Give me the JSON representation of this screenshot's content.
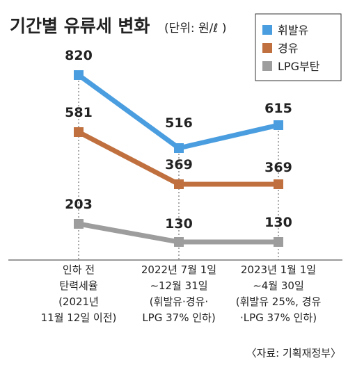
{
  "chart_data": {
    "type": "line",
    "title": "기간별 유류세 변화",
    "unit": "(단위: 원/ℓ )",
    "categories": [
      [
        "인하 전",
        "탄력세율",
        "(2021년",
        "11월 12일 이전)"
      ],
      [
        "2022년 7월 1일",
        "∼12월 31일",
        "(휘발유·경유·",
        "LPG 37% 인하)"
      ],
      [
        "2023년 1월 1일",
        "∼4월 30일",
        "(휘발유 25%, 경유",
        "·LPG 37% 인하)"
      ]
    ],
    "series": [
      {
        "name": "휘발유",
        "color": "#4a9ee0",
        "values": [
          820,
          516,
          615
        ]
      },
      {
        "name": "경유",
        "color": "#c0703e",
        "values": [
          581,
          369,
          369
        ]
      },
      {
        "name": "LPG부탄",
        "color": "#9d9d9d",
        "values": [
          203,
          130,
          130
        ]
      }
    ],
    "ylim": [
      130,
      820
    ],
    "legend": "top-right",
    "source": "〈자료: 기획재정부〉"
  }
}
